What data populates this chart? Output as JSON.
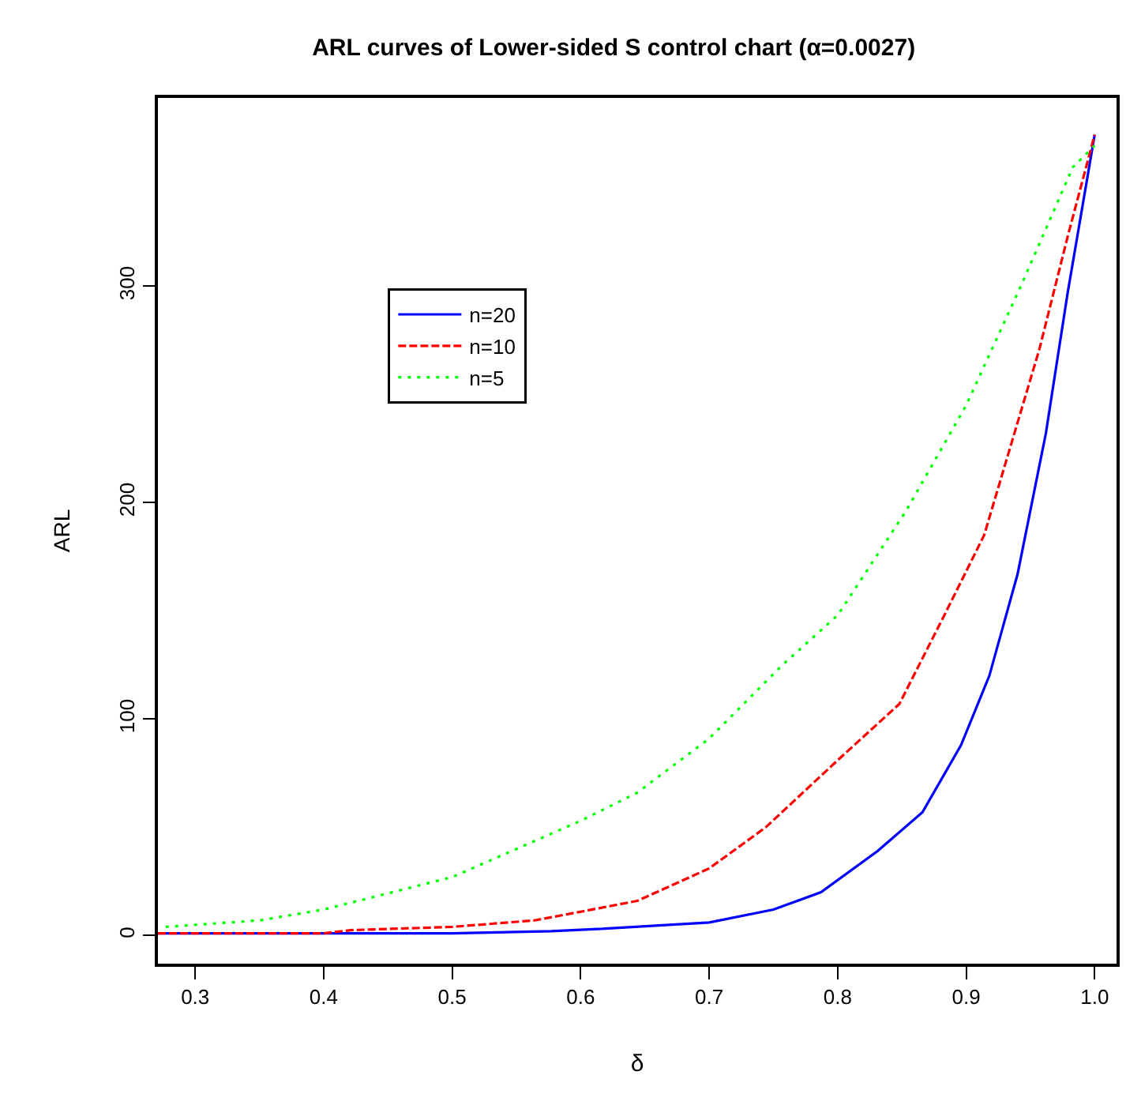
{
  "chart_data": {
    "type": "line",
    "title": "ARL curves of Lower-sided S control chart (α=0.0027)",
    "xlabel": "δ",
    "ylabel": "ARL",
    "xlim": [
      0.271,
      1.017
    ],
    "xticks": [
      {
        "value": 0.3,
        "label": "0.3"
      },
      {
        "value": 0.4,
        "label": "0.4"
      },
      {
        "value": 0.5,
        "label": "0.5"
      },
      {
        "value": 0.6,
        "label": "0.6"
      },
      {
        "value": 0.7,
        "label": "0.7"
      },
      {
        "value": 0.8,
        "label": "0.8"
      },
      {
        "value": 0.9,
        "label": "0.9"
      },
      {
        "value": 1.0,
        "label": "1.0"
      }
    ],
    "ylim": [
      -13,
      387
    ],
    "yticks": [
      0,
      100,
      200,
      300
    ],
    "legend": "top left",
    "marker": "none",
    "series": [
      {
        "name": "n=20",
        "color": "#0000ff",
        "line_style": "solid",
        "x": [
          0.271,
          0.4,
          0.5,
          0.577,
          0.613,
          0.7,
          0.75,
          0.787,
          0.831,
          0.866,
          0.896,
          0.918,
          0.94,
          0.962,
          0.979,
          1.0
        ],
        "values": [
          1,
          1,
          1,
          2,
          3,
          6,
          12,
          20,
          39,
          57,
          88,
          120,
          167,
          232,
          297,
          370
        ]
      },
      {
        "name": "n=10",
        "color": "#ff0000",
        "line_style": "dashed",
        "x": [
          0.271,
          0.4,
          0.421,
          0.5,
          0.564,
          0.6,
          0.644,
          0.7,
          0.744,
          0.8,
          0.848,
          0.883,
          0.914,
          0.935,
          0.957,
          0.979,
          1.0
        ],
        "values": [
          1,
          1,
          2.5,
          4,
          7,
          11,
          16,
          31,
          50,
          81,
          107,
          148,
          185,
          227,
          271,
          323,
          370
        ]
      },
      {
        "name": "n=5",
        "color": "#00ff00",
        "line_style": "dotted",
        "x": [
          0.277,
          0.35,
          0.4,
          0.5,
          0.6,
          0.644,
          0.7,
          0.757,
          0.8,
          0.853,
          0.9,
          0.944,
          0.983,
          1.0
        ],
        "values": [
          4,
          7,
          12,
          27,
          53,
          66,
          91,
          125,
          148,
          196,
          245,
          302,
          355,
          365
        ]
      }
    ]
  }
}
